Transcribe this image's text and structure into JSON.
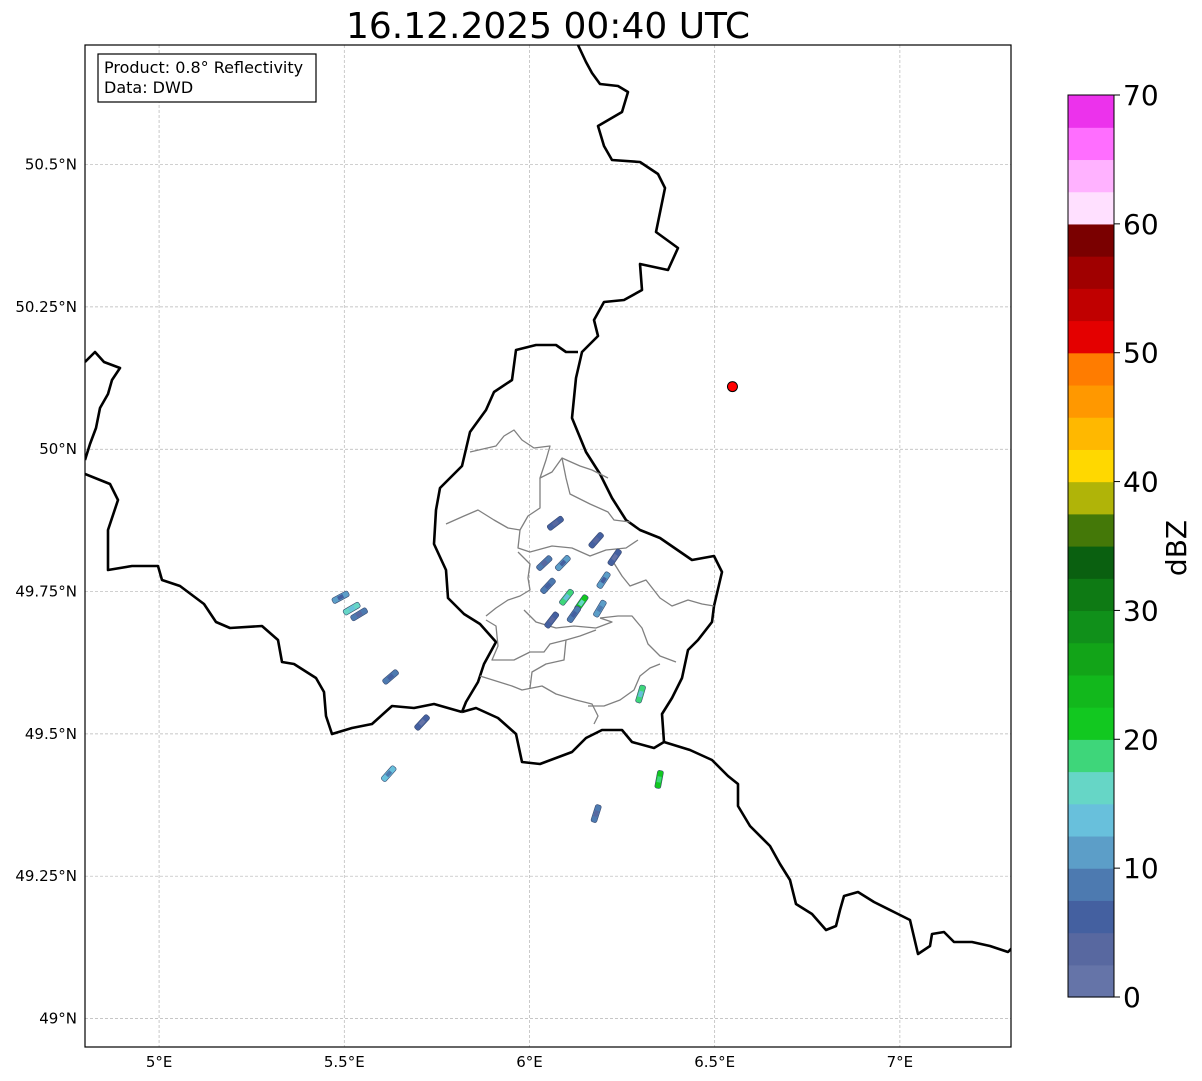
{
  "title": "16.12.2025 00:40 UTC",
  "info_box": {
    "product": "Product: 0.8° Reflectivity",
    "data": "Data: DWD"
  },
  "map": {
    "type": "radar-reflectivity-map",
    "extent": {
      "lon_min": 4.8,
      "lon_max": 7.3,
      "lat_min": 48.95,
      "lat_max": 50.71
    },
    "grid": true,
    "lon_ticks": [
      {
        "value": 5.0,
        "label": "5°E"
      },
      {
        "value": 5.5,
        "label": "5.5°E"
      },
      {
        "value": 6.0,
        "label": "6°E"
      },
      {
        "value": 6.5,
        "label": "6.5°E"
      },
      {
        "value": 7.0,
        "label": "7°E"
      }
    ],
    "lat_ticks": [
      {
        "value": 49.0,
        "label": "49°N"
      },
      {
        "value": 49.25,
        "label": "49.25°N"
      },
      {
        "value": 49.5,
        "label": "49.5°N"
      },
      {
        "value": 49.75,
        "label": "49.75°N"
      },
      {
        "value": 50.0,
        "label": "50°N"
      },
      {
        "value": 50.25,
        "label": "50.25°N"
      },
      {
        "value": 50.5,
        "label": "50.5°N"
      }
    ],
    "radar_site": {
      "lon": 6.548,
      "lat": 50.11,
      "color": "#ff0000"
    },
    "colorbar": {
      "label": "dBZ",
      "min": 0,
      "max": 70,
      "step": 2.5,
      "ticks": [
        0,
        10,
        20,
        30,
        40,
        50,
        60,
        70
      ],
      "colors": [
        "#6574a8",
        "#5868a0",
        "#4460a0",
        "#4d7ab0",
        "#5c9ec8",
        "#68c0dc",
        "#66d6c6",
        "#3ed67a",
        "#12c820",
        "#12b81c",
        "#12a418",
        "#10901a",
        "#0e7a14",
        "#0a6010",
        "#447808",
        "#b0b408",
        "#ffd800",
        "#ffb800",
        "#ff9800",
        "#ff7c00",
        "#e40000",
        "#c00000",
        "#a00000",
        "#7a0000",
        "#ffe0ff",
        "#ffb2ff",
        "#ff6eff",
        "#ec32ec"
      ]
    },
    "echoes": [
      {
        "lon": 5.49,
        "lat": 49.74,
        "dbz": 10
      },
      {
        "lon": 5.52,
        "lat": 49.72,
        "dbz": 17
      },
      {
        "lon": 5.54,
        "lat": 49.71,
        "dbz": 8
      },
      {
        "lon": 5.625,
        "lat": 49.6,
        "dbz": 9
      },
      {
        "lon": 5.71,
        "lat": 49.52,
        "dbz": 6
      },
      {
        "lon": 5.62,
        "lat": 49.43,
        "dbz": 13
      },
      {
        "lon": 6.07,
        "lat": 49.87,
        "dbz": 7
      },
      {
        "lon": 6.18,
        "lat": 49.84,
        "dbz": 7
      },
      {
        "lon": 6.23,
        "lat": 49.81,
        "dbz": 6
      },
      {
        "lon": 6.04,
        "lat": 49.8,
        "dbz": 8
      },
      {
        "lon": 6.09,
        "lat": 49.8,
        "dbz": 10
      },
      {
        "lon": 6.05,
        "lat": 49.76,
        "dbz": 9
      },
      {
        "lon": 6.1,
        "lat": 49.74,
        "dbz": 18
      },
      {
        "lon": 6.14,
        "lat": 49.73,
        "dbz": 20
      },
      {
        "lon": 6.12,
        "lat": 49.71,
        "dbz": 9
      },
      {
        "lon": 6.2,
        "lat": 49.77,
        "dbz": 11
      },
      {
        "lon": 6.19,
        "lat": 49.72,
        "dbz": 12
      },
      {
        "lon": 6.06,
        "lat": 49.7,
        "dbz": 7
      },
      {
        "lon": 6.3,
        "lat": 49.57,
        "dbz": 18
      },
      {
        "lon": 6.35,
        "lat": 49.42,
        "dbz": 22
      },
      {
        "lon": 6.18,
        "lat": 49.36,
        "dbz": 8
      }
    ]
  }
}
